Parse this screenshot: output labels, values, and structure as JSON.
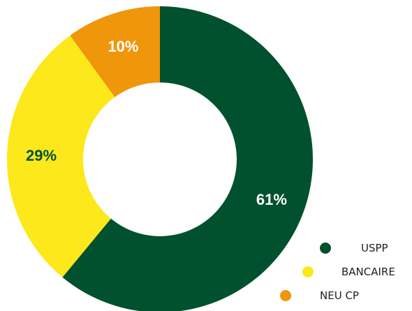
{
  "chart_data": {
    "type": "pie",
    "donut": true,
    "start_angle_deg": 0,
    "direction": "clockwise",
    "slices": [
      {
        "label": "USPP",
        "value": 61,
        "display": "61%",
        "color": "#02512e",
        "label_color": "#ffffff"
      },
      {
        "label": "BANCAIRE",
        "value": 29,
        "display": "29%",
        "color": "#fce81b",
        "label_color": "#02512e"
      },
      {
        "label": "NEU CP",
        "value": 10,
        "display": "10%",
        "color": "#f0960b",
        "label_color": "#ffffff"
      }
    ],
    "legend": {
      "position": "bottom-right",
      "entries": [
        "USPP",
        "BANCAIRE",
        "NEU CP"
      ]
    }
  }
}
